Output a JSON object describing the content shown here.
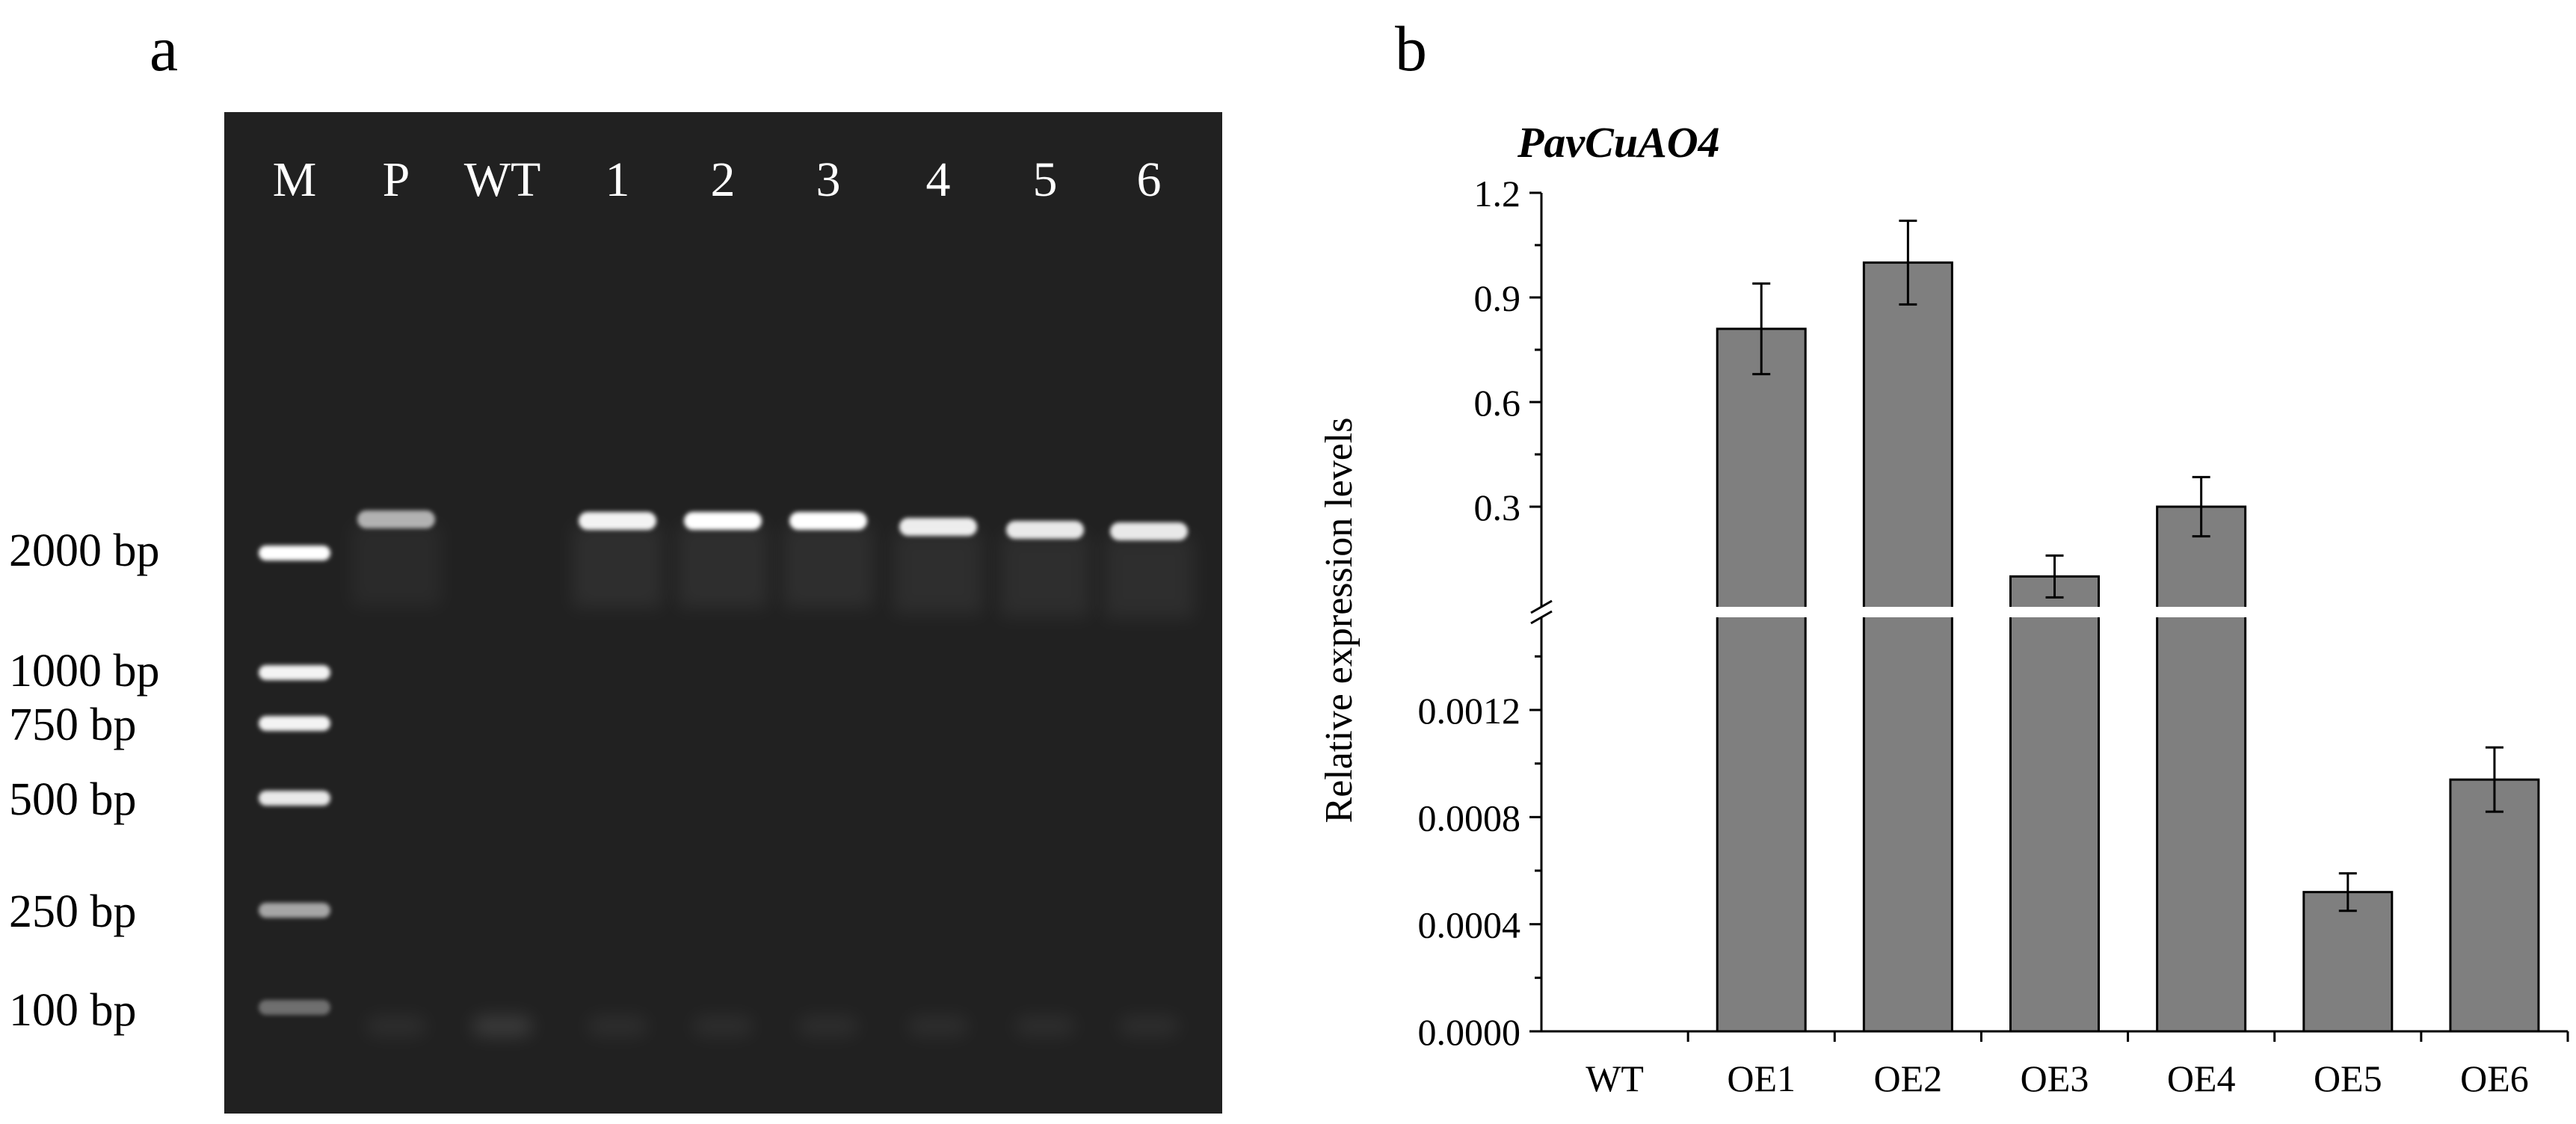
{
  "panels": {
    "left_label": "a",
    "right_label": "b"
  },
  "gel": {
    "lane_labels": [
      "M",
      "P",
      "WT",
      "1",
      "2",
      "3",
      "4",
      "5",
      "6"
    ],
    "marker_labels": [
      "2000 bp",
      "1000 bp",
      "750 bp",
      "500 bp",
      "250 bp",
      "100 bp"
    ],
    "band_present": [
      false,
      true,
      false,
      true,
      true,
      true,
      true,
      true,
      true
    ],
    "colors": {
      "background": "#212121",
      "label": "#ffffff",
      "band": "#ffffff"
    }
  },
  "chart_data": {
    "type": "bar",
    "title": "PavCuAO4",
    "ylabel": "Relative expression levels",
    "xlabel": "",
    "categories": [
      "WT",
      "OE1",
      "OE2",
      "OE3",
      "OE4",
      "OE5",
      "OE6"
    ],
    "values": [
      0,
      0.81,
      1.0,
      0.1,
      0.3,
      0.00052,
      0.00094
    ],
    "errors": [
      0,
      0.13,
      0.12,
      0.06,
      0.085,
      7e-05,
      0.00012
    ],
    "axis_break": true,
    "lower_range": [
      0,
      0.0015
    ],
    "upper_range": [
      0.0,
      1.2
    ],
    "lower_ticks": [
      "0.0000",
      "0.0004",
      "0.0008",
      "0.0012"
    ],
    "upper_ticks": [
      "0.3",
      "0.6",
      "0.9",
      "1.2"
    ],
    "upper_tick_values": [
      0.3,
      0.6,
      0.9,
      1.2
    ],
    "lower_tick_values": [
      0,
      0.0004,
      0.0008,
      0.0012
    ],
    "grid": false,
    "legend": "none",
    "colors": {
      "bar": "#7f7f7f",
      "bar_edge": "#000000",
      "axis": "#000000"
    }
  }
}
